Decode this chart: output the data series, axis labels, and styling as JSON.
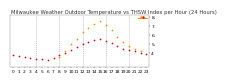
{
  "title": "Milwaukee Weather Outdoor Temperature vs THSW Index per Hour (24 Hours)",
  "background_color": "#ffffff",
  "grid_color": "#aaaaaa",
  "hours": [
    0,
    1,
    2,
    3,
    4,
    5,
    6,
    7,
    8,
    9,
    10,
    11,
    12,
    13,
    14,
    15,
    16,
    17,
    18,
    19,
    20,
    21,
    22,
    23
  ],
  "temp_values": [
    38,
    37,
    36,
    35,
    34,
    34,
    33,
    35,
    38,
    40,
    43,
    47,
    50,
    52,
    54,
    55,
    53,
    51,
    48,
    45,
    43,
    42,
    40,
    39
  ],
  "thsw_values": [
    null,
    null,
    null,
    null,
    null,
    null,
    null,
    null,
    36,
    42,
    50,
    56,
    63,
    68,
    72,
    75,
    71,
    65,
    58,
    52,
    48,
    45,
    42,
    null
  ],
  "temp_color": "#dd0000",
  "thsw_color": "#ff8800",
  "thsw_line_color": "#ff8800",
  "ylim": [
    25,
    82
  ],
  "ytick_values": [
    40,
    50,
    60,
    70,
    80
  ],
  "ytick_labels": [
    "4.",
    "5.",
    "6.",
    "7.",
    "8."
  ],
  "vline_hours": [
    4,
    8,
    12,
    16,
    20
  ],
  "title_fontsize": 3.8,
  "tick_fontsize": 3.2,
  "dot_size": 1.5,
  "legend_dot_size": 3
}
